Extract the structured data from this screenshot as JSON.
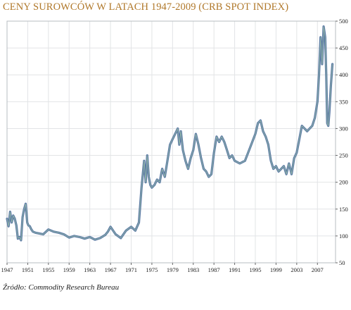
{
  "title": "CENY SUROWCÓW W LATACH 1947-2009 (CRB SPOT INDEX)",
  "source": "Źródło: Commodity Research Bureau",
  "colors": {
    "title": "#b0782a",
    "line_outer": "#5a78a6",
    "line_inner": "#8fb3a6",
    "frame": "#b7bcc2",
    "grid": "#e2e4e6",
    "background": "#ffffff"
  },
  "chart_data": {
    "type": "line",
    "title": "CENY SUROWCÓW W LATACH 1947-2009 (CRB SPOT INDEX)",
    "xlabel": "",
    "ylabel": "",
    "xlim": [
      1947,
      2010.5
    ],
    "ylim": [
      50,
      500
    ],
    "x_ticks": [
      1947,
      1951,
      1955,
      1959,
      1963,
      1967,
      1971,
      1975,
      1979,
      1983,
      1987,
      1991,
      1995,
      1999,
      2003,
      2007
    ],
    "x_tick_labels": [
      "1947",
      "1951",
      "1955",
      "1959",
      "1963",
      "1967",
      "1971",
      "1975",
      "1979",
      "1983",
      "1987",
      "1991",
      "1995",
      "1999",
      "2003",
      "2007"
    ],
    "y_ticks": [
      50,
      100,
      150,
      200,
      250,
      300,
      350,
      400,
      450,
      500
    ],
    "y_tick_labels": [
      "50",
      "100",
      "150",
      "200",
      "250",
      "300",
      "350",
      "400",
      "450",
      "500"
    ],
    "grid": true,
    "series": [
      {
        "x": [
          1947.0,
          1947.3,
          1947.6,
          1947.9,
          1948.2,
          1948.5,
          1948.8,
          1949.1,
          1949.4,
          1949.7,
          1950.0,
          1950.3,
          1950.6,
          1950.9,
          1951.1,
          1951.4,
          1951.7,
          1952.0,
          1952.5,
          1953.0,
          1954.0,
          1955.0,
          1956.0,
          1957.0,
          1958.0,
          1959.0,
          1960.0,
          1961.0,
          1962.0,
          1963.0,
          1964.0,
          1965.0,
          1966.0,
          1966.5,
          1967.0,
          1968.0,
          1969.0,
          1970.0,
          1971.0,
          1971.8,
          1972.5,
          1973.0,
          1973.5,
          1973.8,
          1974.1,
          1974.4,
          1974.7,
          1975.0,
          1975.5,
          1976.0,
          1976.5,
          1977.0,
          1977.5,
          1978.0,
          1978.5,
          1979.0,
          1979.5,
          1980.0,
          1980.3,
          1980.6,
          1981.0,
          1981.5,
          1982.0,
          1982.5,
          1983.0,
          1983.5,
          1984.0,
          1984.5,
          1985.0,
          1985.5,
          1986.0,
          1986.5,
          1987.0,
          1987.5,
          1988.0,
          1988.5,
          1989.0,
          1989.5,
          1990.0,
          1990.5,
          1991.0,
          1992.0,
          1993.0,
          1994.0,
          1995.0,
          1995.5,
          1996.0,
          1996.5,
          1997.0,
          1997.5,
          1998.0,
          1998.5,
          1999.0,
          1999.5,
          2000.0,
          2000.5,
          2001.0,
          2001.5,
          2002.0,
          2002.5,
          2003.0,
          2003.5,
          2004.0,
          2004.5,
          2005.0,
          2005.5,
          2006.0,
          2006.5,
          2007.0,
          2007.3,
          2007.6,
          2007.9,
          2008.2,
          2008.5,
          2008.7,
          2008.9,
          2009.1,
          2009.3,
          2009.6,
          2009.9
        ],
        "values": [
          132,
          118,
          145,
          125,
          138,
          132,
          120,
          95,
          98,
          92,
          135,
          150,
          160,
          125,
          120,
          118,
          112,
          108,
          106,
          105,
          103,
          112,
          108,
          106,
          103,
          97,
          100,
          98,
          95,
          98,
          93,
          96,
          102,
          108,
          117,
          103,
          96,
          110,
          117,
          110,
          125,
          190,
          240,
          200,
          250,
          210,
          195,
          190,
          195,
          205,
          200,
          225,
          210,
          240,
          270,
          280,
          290,
          300,
          270,
          295,
          260,
          240,
          225,
          245,
          260,
          290,
          270,
          245,
          225,
          220,
          210,
          215,
          255,
          285,
          275,
          285,
          275,
          260,
          245,
          250,
          240,
          235,
          240,
          265,
          290,
          310,
          315,
          295,
          285,
          270,
          240,
          225,
          230,
          220,
          225,
          230,
          215,
          235,
          215,
          245,
          255,
          280,
          305,
          300,
          295,
          300,
          305,
          320,
          350,
          400,
          470,
          420,
          490,
          470,
          400,
          310,
          305,
          330,
          380,
          420
        ]
      }
    ]
  }
}
